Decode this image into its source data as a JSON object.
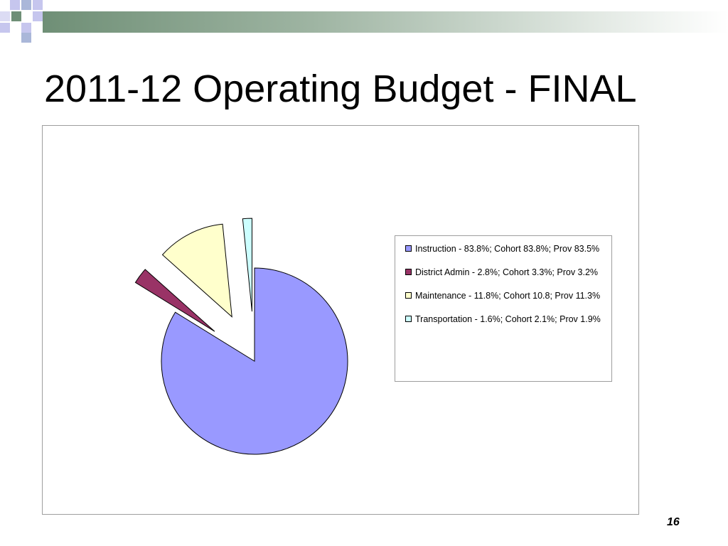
{
  "slide": {
    "title": "2011-12 Operating Budget - FINAL",
    "page_number": "16"
  },
  "chart_data": {
    "type": "pie",
    "title": "",
    "exploded": true,
    "legend_position": "right",
    "slices": [
      {
        "label": "Instruction - 83.8%; Cohort 83.8%; Prov 83.5%",
        "value": 83.8,
        "color": "#9999ff"
      },
      {
        "label": "District Admin - 2.8%; Cohort 3.3%; Prov 3.2%",
        "value": 2.8,
        "color": "#993366"
      },
      {
        "label": "Maintenance - 11.8%; Cohort 10.8; Prov 11.3%",
        "value": 11.8,
        "color": "#ffffcc"
      },
      {
        "label": "Transportation - 1.6%; Cohort 2.1%; Prov 1.9%",
        "value": 1.6,
        "color": "#ccffff"
      }
    ]
  }
}
